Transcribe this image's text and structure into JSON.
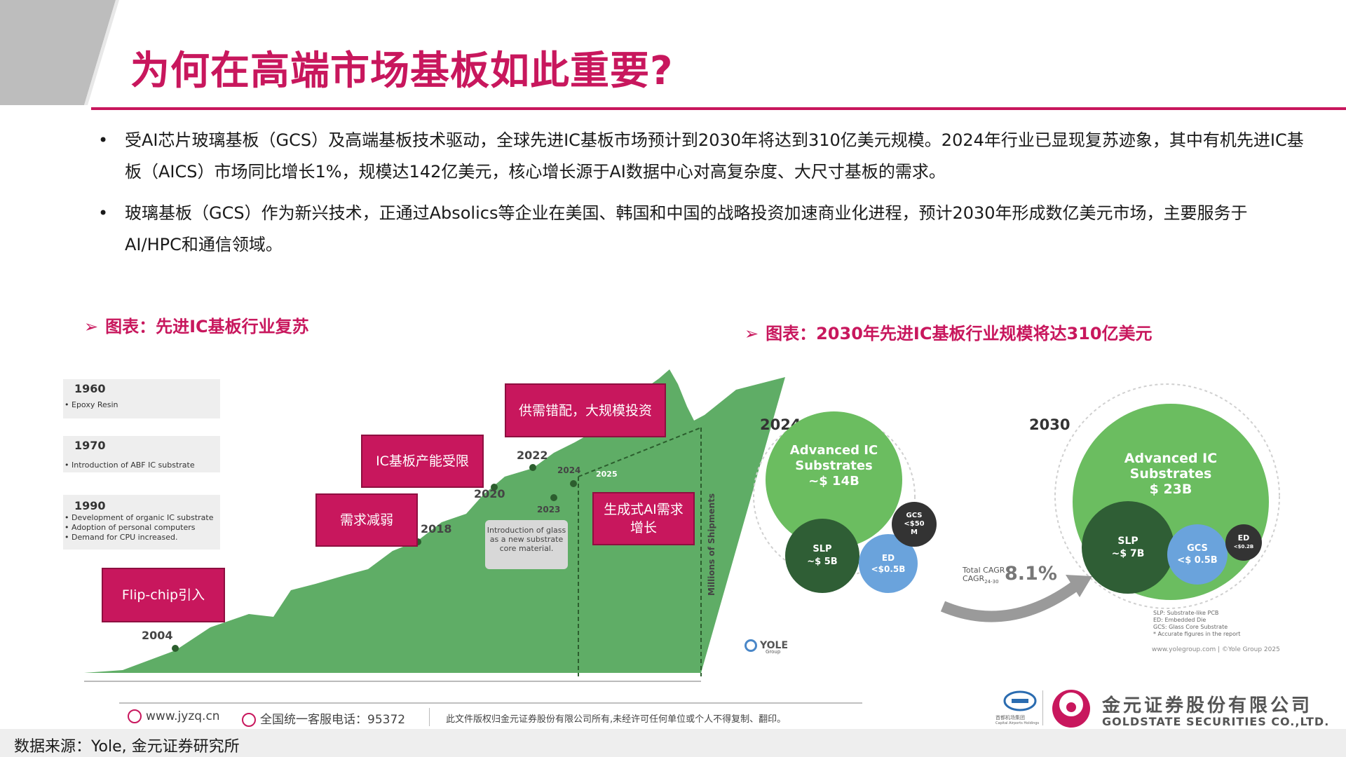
{
  "title": "为何在高端市场基板如此重要?",
  "bullets": [
    "受AI芯片玻璃基板（GCS）及高端基板技术驱动，全球先进IC基板市场预计到2030年将达到310亿美元规模。2024年行业已显现复苏迹象，其中有机先进IC基板（AICS）市场同比增长1%，规模达142亿美元，核心增长源于AI数据中心对高复杂度、大尺寸基板的需求。",
    "玻璃基板（GCS）作为新兴技术，正通过Absolics等企业在美国、韩国和中国的战略投资加速商业化进程，预计2030年形成数亿美元市场，主要服务于AI/HPC和通信领域。"
  ],
  "bullet_symbol": "•",
  "left_chart": {
    "heading_arrow": "➢",
    "heading": "图表：先进IC基板行业复苏",
    "timeline": [
      {
        "year": "1960",
        "notes": [
          "Epoxy Resin"
        ]
      },
      {
        "year": "1970",
        "notes": [
          "Introduction of ABF IC substrate"
        ]
      },
      {
        "year": "1990",
        "notes": [
          "Development of organic IC substrate",
          "Adoption of personal computers",
          "Demand for CPU increased."
        ]
      }
    ],
    "callouts": [
      "Flip-chip引入",
      "需求减弱",
      "IC基板产能受限",
      "供需错配，大规模投资",
      "生成式AI需求增长"
    ],
    "year_labels": [
      "2004",
      "2018",
      "2020",
      "2022",
      "2023",
      "2024",
      "2025"
    ],
    "intro_note": "Introduction of glass as a new substrate core material.",
    "y_axis_label": "Millions of Shipments",
    "colors": {
      "area": "#5fad66",
      "callout": "#c8175d"
    }
  },
  "right_chart": {
    "heading_arrow": "➢",
    "heading": "图表：2030年先进IC基板行业规模将达310亿美元",
    "year_2024": {
      "label": "2024",
      "main": {
        "name": "Advanced IC Substrates",
        "value": "~$ 14B"
      },
      "slp": {
        "name": "SLP",
        "value": "~$ 5B"
      },
      "ed": {
        "name": "ED",
        "value": "<$0.5B"
      },
      "gcs": {
        "name": "GCS",
        "value": "<$50 M"
      }
    },
    "year_2030": {
      "label": "2030",
      "main": {
        "name": "Advanced IC Substrates",
        "value": "$ 23B"
      },
      "slp": {
        "name": "SLP",
        "value": "~$ 7B"
      },
      "gcs": {
        "name": "GCS",
        "value": "<$ 0.5B"
      },
      "ed": {
        "name": "ED",
        "value": "<$0.2B"
      }
    },
    "cagr_label": "Total CAGR",
    "cagr_sub": "24-30",
    "cagr_value": "8.1%",
    "legend_notes": [
      "SLP: Substrate-like PCB",
      "ED: Embedded Die",
      "GCS: Glass Core Substrate",
      "* Accurate figures in the report"
    ],
    "yole_url": "www.yolegroup.com | ©Yole Group 2025",
    "yole_logo": "YOLE",
    "yole_logo_sub": "Group",
    "colors": {
      "main": "#6bbd60",
      "slp": "#2f5e35",
      "ed": "#6aa3dc",
      "gcs": "#333333"
    }
  },
  "footer": {
    "website": "www.jyzq.cn",
    "hotline": "全国统一客服电话：95372",
    "copyright": "此文件版权归金元证券股份有限公司所有,未经许可任何单位或个人不得复制、翻印。",
    "company_cn": "金元证券股份有限公司",
    "company_en": "GOLDSTATE SECURITIES CO.,LTD.",
    "partner_cn": "首都机场集团",
    "partner_en": "Capital Airports Holdings"
  },
  "source": "数据来源：Yole, 金元证券研究所",
  "brand_color": "#c8175d"
}
